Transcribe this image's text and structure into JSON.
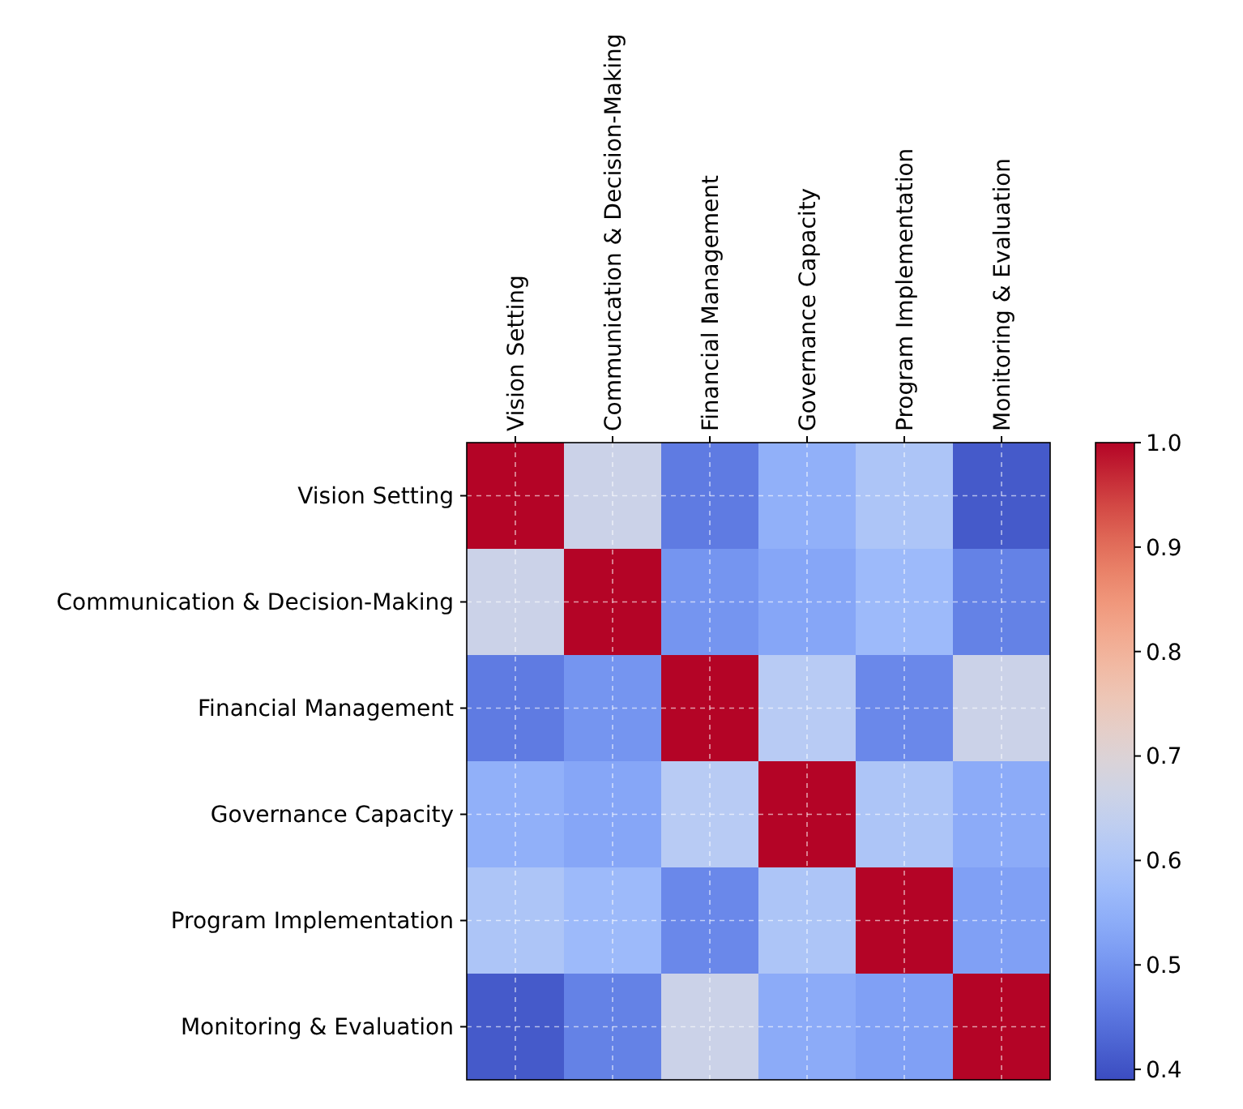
{
  "chart_data": {
    "type": "heatmap",
    "categories": [
      "Vision Setting",
      "Communication & Decision-Making",
      "Financial Management",
      "Governance Capacity",
      "Program Implementation",
      "Monitoring & Evaluation"
    ],
    "y_categories": [
      "Vision Setting",
      "Communication & Decision-Making",
      "Financial Management",
      "Governance Capacity",
      "Program Implementation",
      "Monitoring & Evaluation"
    ],
    "cells": [
      [
        1.0,
        0.66,
        0.46,
        0.55,
        0.6,
        0.41
      ],
      [
        0.66,
        1.0,
        0.5,
        0.53,
        0.57,
        0.47
      ],
      [
        0.46,
        0.5,
        1.0,
        0.62,
        0.48,
        0.66
      ],
      [
        0.55,
        0.53,
        0.62,
        1.0,
        0.6,
        0.54
      ],
      [
        0.6,
        0.57,
        0.48,
        0.6,
        1.0,
        0.52
      ],
      [
        0.41,
        0.47,
        0.66,
        0.54,
        0.52,
        1.0
      ]
    ],
    "clim": [
      0.39,
      1.0
    ],
    "cticks": [
      0.4,
      0.5,
      0.6,
      0.7,
      0.8,
      0.9,
      {
        "value": 1,
        "label": "1.0"
      }
    ],
    "grid": true
  }
}
